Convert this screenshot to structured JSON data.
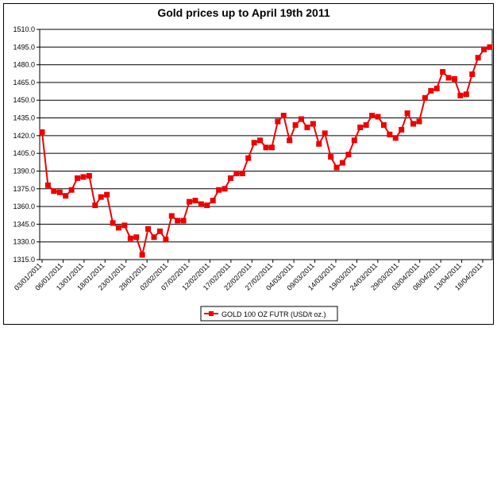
{
  "chart_data": {
    "type": "line",
    "title": "Gold prices up to April 19th 2011",
    "xlabel": "",
    "ylabel": "",
    "ylim": [
      1315,
      1510
    ],
    "yticks": [
      "1510.0",
      "1495.0",
      "1480.0",
      "1465.0",
      "1450.0",
      "1435.0",
      "1420.0",
      "1405.0",
      "1390.0",
      "1375.0",
      "1360.0",
      "1345.0",
      "1330.0",
      "1315.0"
    ],
    "x_tick_labels": [
      "03/01/2011",
      "06/01/2011",
      "13/01/2011",
      "18/01/2011",
      "23/01/2011",
      "28/01/2011",
      "02/02/2011",
      "07/02/2011",
      "12/02/2011",
      "17/02/2011",
      "22/02/2011",
      "27/02/2011",
      "04/03/2011",
      "09/03/2011",
      "14/03/2011",
      "19/03/2011",
      "24/03/2011",
      "29/03/2011",
      "03/04/2011",
      "08/04/2011",
      "13/04/2011",
      "18/04/2011"
    ],
    "grid": true,
    "legend_position": "bottom",
    "color": "#ee0000",
    "series": [
      {
        "name": "GOLD 100 OZ FUTR (USD/t oz.)",
        "values": [
          1423,
          1378,
          1373,
          1372,
          1369,
          1374,
          1384,
          1385,
          1386,
          1361,
          1368,
          1370,
          1346,
          1342,
          1344,
          1333,
          1334,
          1319,
          1341,
          1334,
          1339,
          1332,
          1352,
          1348,
          1348,
          1364,
          1365,
          1362,
          1361,
          1365,
          1374,
          1375,
          1384,
          1388,
          1388,
          1401,
          1414,
          1416,
          1410,
          1410,
          1432,
          1437,
          1416,
          1429,
          1434,
          1427,
          1430,
          1413,
          1422,
          1402,
          1393,
          1397,
          1404,
          1416,
          1427,
          1429,
          1437,
          1436,
          1429,
          1421,
          1418,
          1425,
          1439,
          1430,
          1432,
          1452,
          1458,
          1460,
          1474,
          1469,
          1468,
          1454,
          1455,
          1472,
          1486,
          1493,
          1495
        ]
      }
    ]
  }
}
